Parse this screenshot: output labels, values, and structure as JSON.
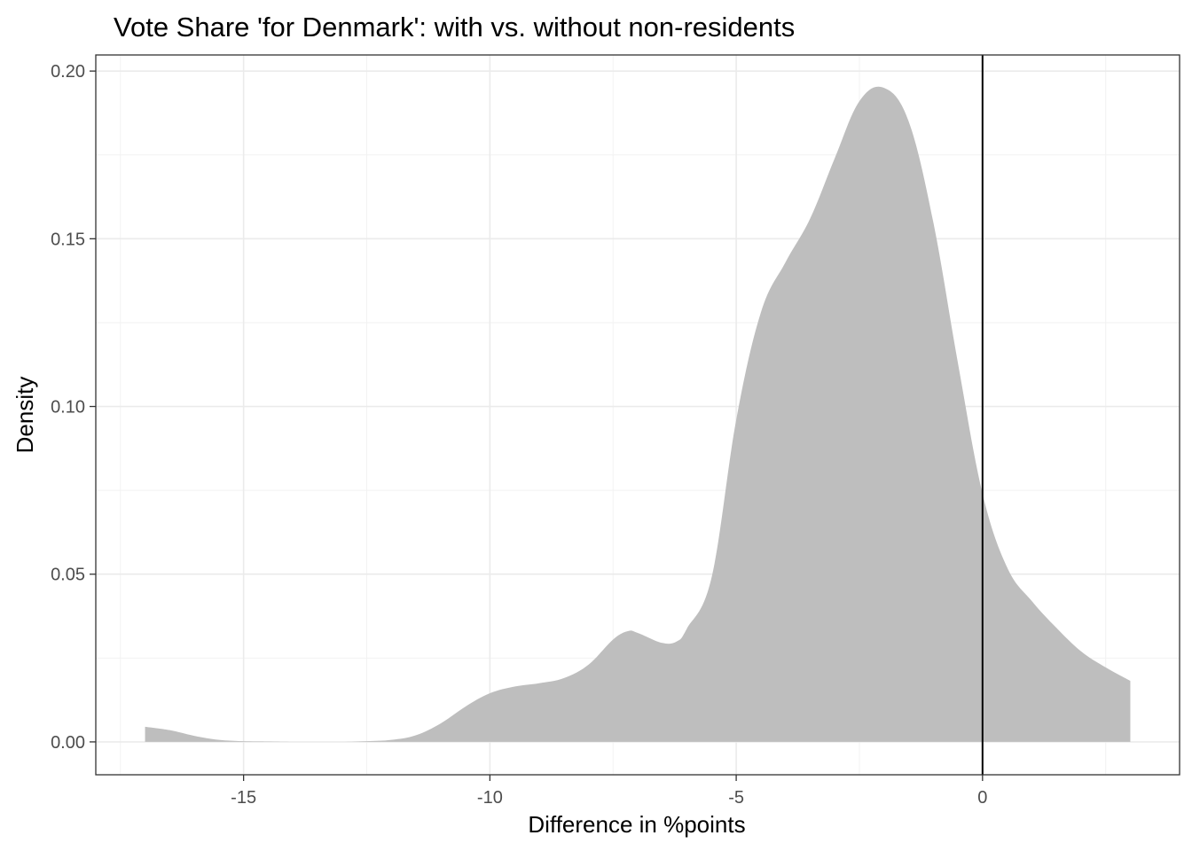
{
  "chart_data": {
    "type": "area",
    "title": "Vote Share 'for Denmark': with vs. without non-residents",
    "xlabel": "Difference in %points",
    "ylabel": "Density",
    "xlim": [
      -18.0,
      4.0
    ],
    "ylim": [
      -0.0098,
      0.2048
    ],
    "x_ticks": [
      -15,
      -10,
      -5,
      0
    ],
    "x_tick_labels": [
      "-15",
      "-10",
      "-5",
      "0"
    ],
    "y_ticks": [
      0.0,
      0.05,
      0.1,
      0.15,
      0.2
    ],
    "y_tick_labels": [
      "0.00",
      "0.05",
      "0.10",
      "0.15",
      "0.20"
    ],
    "grid": true,
    "reference_line_x": 0,
    "fill_color": "#bebebe",
    "reference_line_color": "#000000",
    "x": [
      -17.0,
      -16.5,
      -16.0,
      -15.5,
      -15.0,
      -14.5,
      -14.0,
      -13.5,
      -13.0,
      -12.5,
      -12.0,
      -11.5,
      -11.0,
      -10.5,
      -10.0,
      -9.5,
      -9.0,
      -8.5,
      -8.0,
      -7.5,
      -7.2,
      -7.0,
      -6.5,
      -6.2,
      -6.0,
      -5.5,
      -5.0,
      -4.5,
      -4.0,
      -3.5,
      -3.0,
      -2.5,
      -2.0,
      -1.5,
      -1.0,
      -0.5,
      0.0,
      0.5,
      1.0,
      1.5,
      2.0,
      2.5,
      3.0
    ],
    "y": [
      0.0045,
      0.0035,
      0.0018,
      0.0006,
      0.0002,
      0.0001,
      0.0,
      0.0,
      0.0,
      0.0002,
      0.0006,
      0.002,
      0.0055,
      0.0105,
      0.0145,
      0.0165,
      0.0175,
      0.019,
      0.023,
      0.0305,
      0.033,
      0.0325,
      0.0295,
      0.03,
      0.0338,
      0.049,
      0.096,
      0.128,
      0.143,
      0.156,
      0.174,
      0.191,
      0.195,
      0.185,
      0.155,
      0.113,
      0.074,
      0.052,
      0.042,
      0.034,
      0.027,
      0.0222,
      0.0182
    ]
  }
}
